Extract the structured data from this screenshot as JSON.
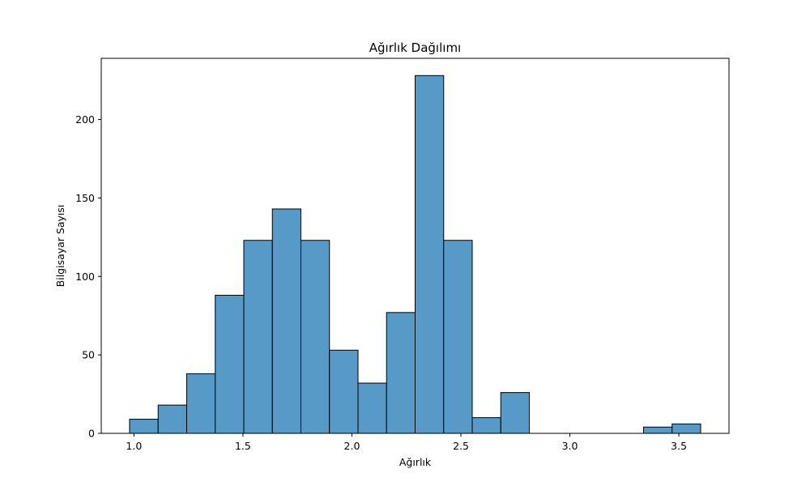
{
  "chart_data": {
    "type": "bar",
    "title": "Ağırlık Dağılımı",
    "xlabel": "Ağırlık",
    "ylabel": "Bilgisayar Sayısı",
    "xlim": [
      0.85,
      3.73
    ],
    "ylim": [
      0,
      239
    ],
    "xticks": [
      1.0,
      1.5,
      2.0,
      2.5,
      3.0,
      3.5
    ],
    "xtick_labels": [
      "1.0",
      "1.5",
      "2.0",
      "2.5",
      "3.0",
      "3.5"
    ],
    "yticks": [
      0,
      50,
      100,
      150,
      200
    ],
    "ytick_labels": [
      "0",
      "50",
      "100",
      "150",
      "200"
    ],
    "grid": false,
    "bar_color": "#5799c7",
    "bin_edges": [
      0.98,
      1.111,
      1.242,
      1.373,
      1.504,
      1.635,
      1.766,
      1.897,
      2.028,
      2.159,
      2.29,
      2.421,
      2.552,
      2.683,
      2.814,
      2.945,
      3.076,
      3.207,
      3.338,
      3.469,
      3.6
    ],
    "values": [
      9,
      18,
      38,
      88,
      123,
      143,
      123,
      53,
      32,
      77,
      228,
      123,
      10,
      26,
      0,
      0,
      0,
      0,
      4,
      6
    ]
  }
}
